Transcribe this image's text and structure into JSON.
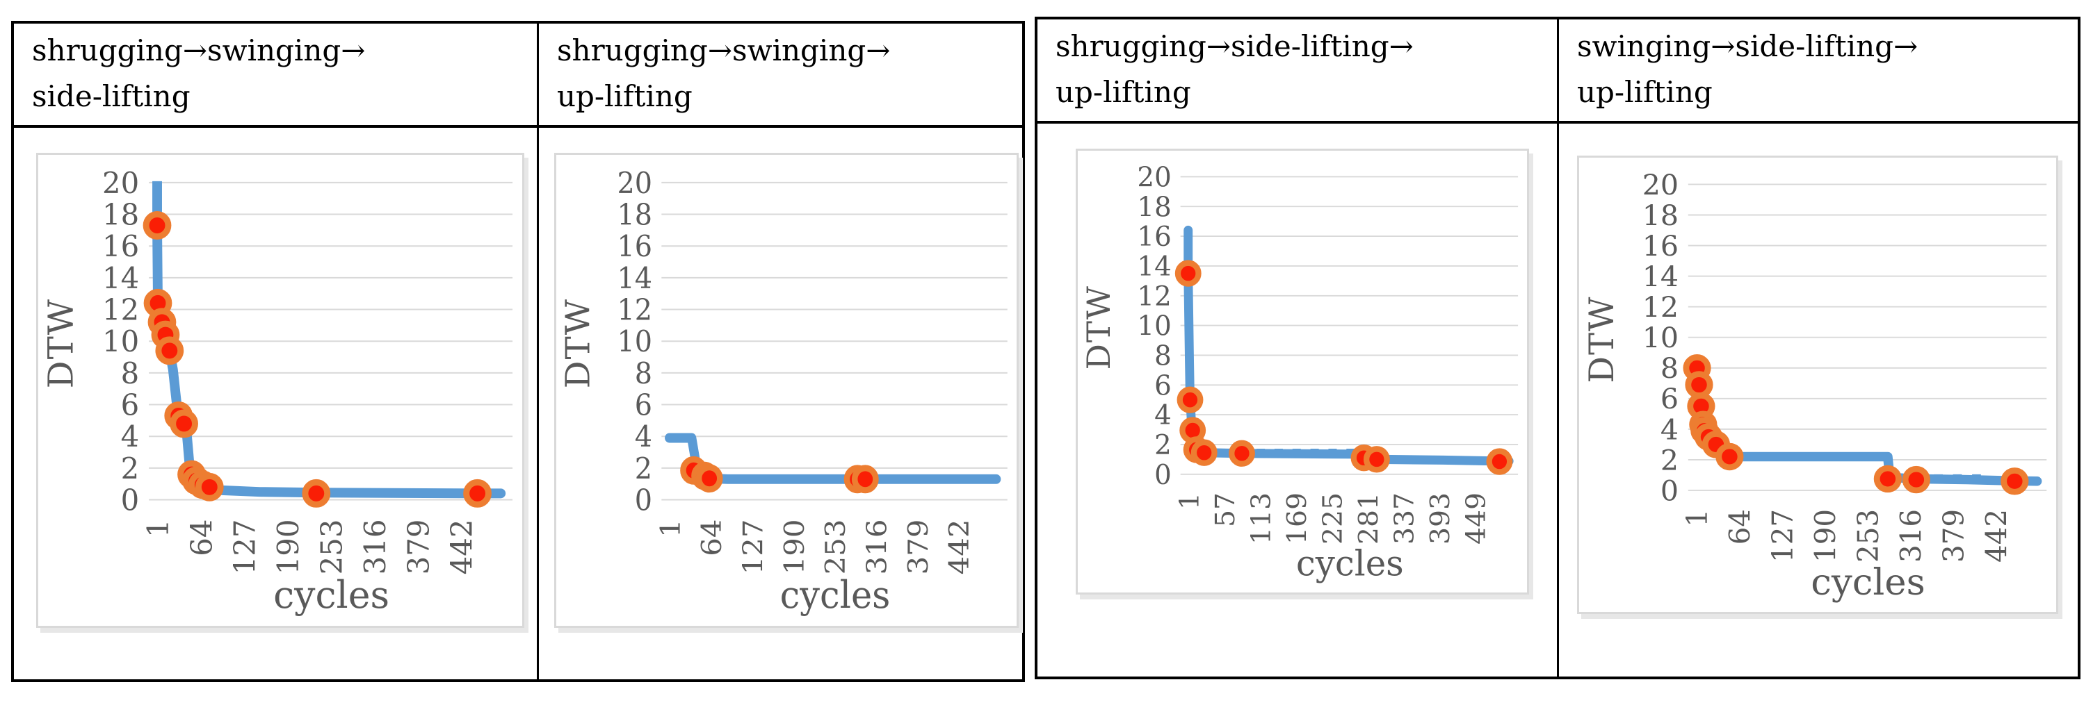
{
  "style": {
    "line_color": "#5b9bd5",
    "marker_fill": "#fa1e05",
    "marker_ring": "#ed7d31",
    "grid_color": "#d9d9d9",
    "axis_text_color": "#595959",
    "table_border_color": "#000000",
    "chart_frame_color": "#d9d9d9"
  },
  "chart_data": [
    {
      "type": "line",
      "title_lines": [
        "shrugging→swinging→",
        "side-lifting"
      ],
      "xlabel": "cycles",
      "ylabel": "DTW",
      "ylim": [
        0,
        20
      ],
      "yticks": [
        0,
        2,
        4,
        6,
        8,
        10,
        12,
        14,
        16,
        18,
        20
      ],
      "xticks": [
        1,
        64,
        127,
        190,
        253,
        316,
        379,
        442
      ],
      "xmax": 505,
      "grid": true,
      "legend": "none",
      "series": [
        {
          "name": "DTW",
          "line": [
            [
              1,
              20.8
            ],
            [
              1,
              17.3
            ],
            [
              2,
              12.4
            ],
            [
              4,
              12.0
            ],
            [
              8,
              11.2
            ],
            [
              13,
              10.4
            ],
            [
              19,
              9.4
            ],
            [
              24,
              8.2
            ],
            [
              29,
              6.2
            ],
            [
              32,
              5.3
            ],
            [
              40,
              4.8
            ],
            [
              44,
              4.2
            ],
            [
              48,
              2.2
            ],
            [
              51,
              1.6
            ],
            [
              58,
              1.2
            ],
            [
              67,
              0.95
            ],
            [
              77,
              0.8
            ],
            [
              95,
              0.6
            ],
            [
              150,
              0.5
            ],
            [
              232,
              0.45
            ],
            [
              466,
              0.4
            ],
            [
              500,
              0.4
            ]
          ],
          "markers": [
            [
              1,
              17.3
            ],
            [
              2,
              12.4
            ],
            [
              8,
              11.2
            ],
            [
              13,
              10.4
            ],
            [
              19,
              9.4
            ],
            [
              32,
              5.3
            ],
            [
              40,
              4.8
            ],
            [
              51,
              1.6
            ],
            [
              58,
              1.2
            ],
            [
              67,
              0.95
            ],
            [
              77,
              0.8
            ],
            [
              232,
              0.4
            ],
            [
              466,
              0.4
            ]
          ]
        }
      ],
      "dash_segments": []
    },
    {
      "type": "line",
      "title_lines": [
        "shrugging→swinging→",
        "up-lifting"
      ],
      "xlabel": "cycles",
      "ylabel": "DTW",
      "ylim": [
        0,
        20
      ],
      "yticks": [
        0,
        2,
        4,
        6,
        8,
        10,
        12,
        14,
        16,
        18,
        20
      ],
      "xticks": [
        1,
        64,
        127,
        190,
        253,
        316,
        379,
        442
      ],
      "xmax": 505,
      "grid": true,
      "legend": "none",
      "series": [
        {
          "name": "DTW",
          "line": [
            [
              1,
              3.9
            ],
            [
              35,
              3.9
            ],
            [
              43,
              1.95
            ],
            [
              48,
              1.7
            ],
            [
              55,
              1.5
            ],
            [
              62,
              1.35
            ],
            [
              90,
              1.3
            ],
            [
              288,
              1.3
            ],
            [
              300,
              1.3
            ],
            [
              500,
              1.3
            ]
          ],
          "markers": [
            [
              38,
              1.85
            ],
            [
              55,
              1.5
            ],
            [
              62,
              1.35
            ],
            [
              288,
              1.3
            ],
            [
              300,
              1.3
            ]
          ]
        }
      ],
      "dash_segments": []
    },
    {
      "type": "line",
      "title_lines": [
        "shrugging→side-lifting→",
        "up-lifting"
      ],
      "xlabel": "cycles",
      "ylabel": "DTW",
      "ylim": [
        0,
        20
      ],
      "yticks": [
        0,
        2,
        4,
        6,
        8,
        10,
        12,
        14,
        16,
        18,
        20
      ],
      "xticks": [
        1,
        57,
        113,
        169,
        225,
        281,
        337,
        393,
        449
      ],
      "xmax": 505,
      "grid": true,
      "legend": "none",
      "series": [
        {
          "name": "DTW",
          "line": [
            [
              1,
              16.4
            ],
            [
              1,
              13.5
            ],
            [
              3,
              7.5
            ],
            [
              4,
              5.0
            ],
            [
              6,
              3.6
            ],
            [
              8,
              2.95
            ],
            [
              11,
              2.2
            ],
            [
              14,
              1.65
            ],
            [
              20,
              1.5
            ],
            [
              26,
              1.45
            ],
            [
              85,
              1.4
            ],
            [
              270,
              1.35
            ],
            [
              278,
              1.1
            ],
            [
              296,
              1.0
            ],
            [
              400,
              0.95
            ],
            [
              488,
              0.88
            ],
            [
              503,
              0.88
            ]
          ],
          "markers": [
            [
              1,
              13.5
            ],
            [
              4,
              5.0
            ],
            [
              8,
              2.95
            ],
            [
              14,
              1.65
            ],
            [
              26,
              1.45
            ],
            [
              85,
              1.4
            ],
            [
              276,
              1.1
            ],
            [
              296,
              1.0
            ],
            [
              488,
              0.85
            ]
          ]
        }
      ],
      "dash_segments": [
        [
          108,
          265,
          1.52
        ]
      ]
    },
    {
      "type": "line",
      "title_lines": [
        "swinging→side-lifting→",
        "up-lifting"
      ],
      "xlabel": "cycles",
      "ylabel": "DTW",
      "ylim": [
        0,
        20
      ],
      "yticks": [
        0,
        2,
        4,
        6,
        8,
        10,
        12,
        14,
        16,
        18,
        20
      ],
      "xticks": [
        1,
        64,
        127,
        190,
        253,
        316,
        379,
        442
      ],
      "xmax": 505,
      "grid": true,
      "legend": "none",
      "series": [
        {
          "name": "DTW",
          "line": [
            [
              1,
              8.3
            ],
            [
              2,
              8.0
            ],
            [
              5,
              6.9
            ],
            [
              8,
              5.5
            ],
            [
              11,
              4.3
            ],
            [
              13,
              3.9
            ],
            [
              19,
              3.5
            ],
            [
              30,
              3.0
            ],
            [
              40,
              2.5
            ],
            [
              50,
              2.2
            ],
            [
              283,
              2.2
            ],
            [
              286,
              0.85
            ],
            [
              325,
              0.75
            ],
            [
              400,
              0.7
            ],
            [
              470,
              0.62
            ],
            [
              503,
              0.6
            ]
          ],
          "markers": [
            [
              2,
              8.0
            ],
            [
              5,
              6.9
            ],
            [
              8,
              5.5
            ],
            [
              11,
              4.3
            ],
            [
              13,
              3.9
            ],
            [
              19,
              3.5
            ],
            [
              30,
              3.0
            ],
            [
              50,
              2.2
            ],
            [
              283,
              0.75
            ],
            [
              325,
              0.7
            ],
            [
              470,
              0.6
            ]
          ]
        }
      ],
      "dash_segments": [
        [
          351,
          427,
          0.85
        ]
      ]
    }
  ]
}
